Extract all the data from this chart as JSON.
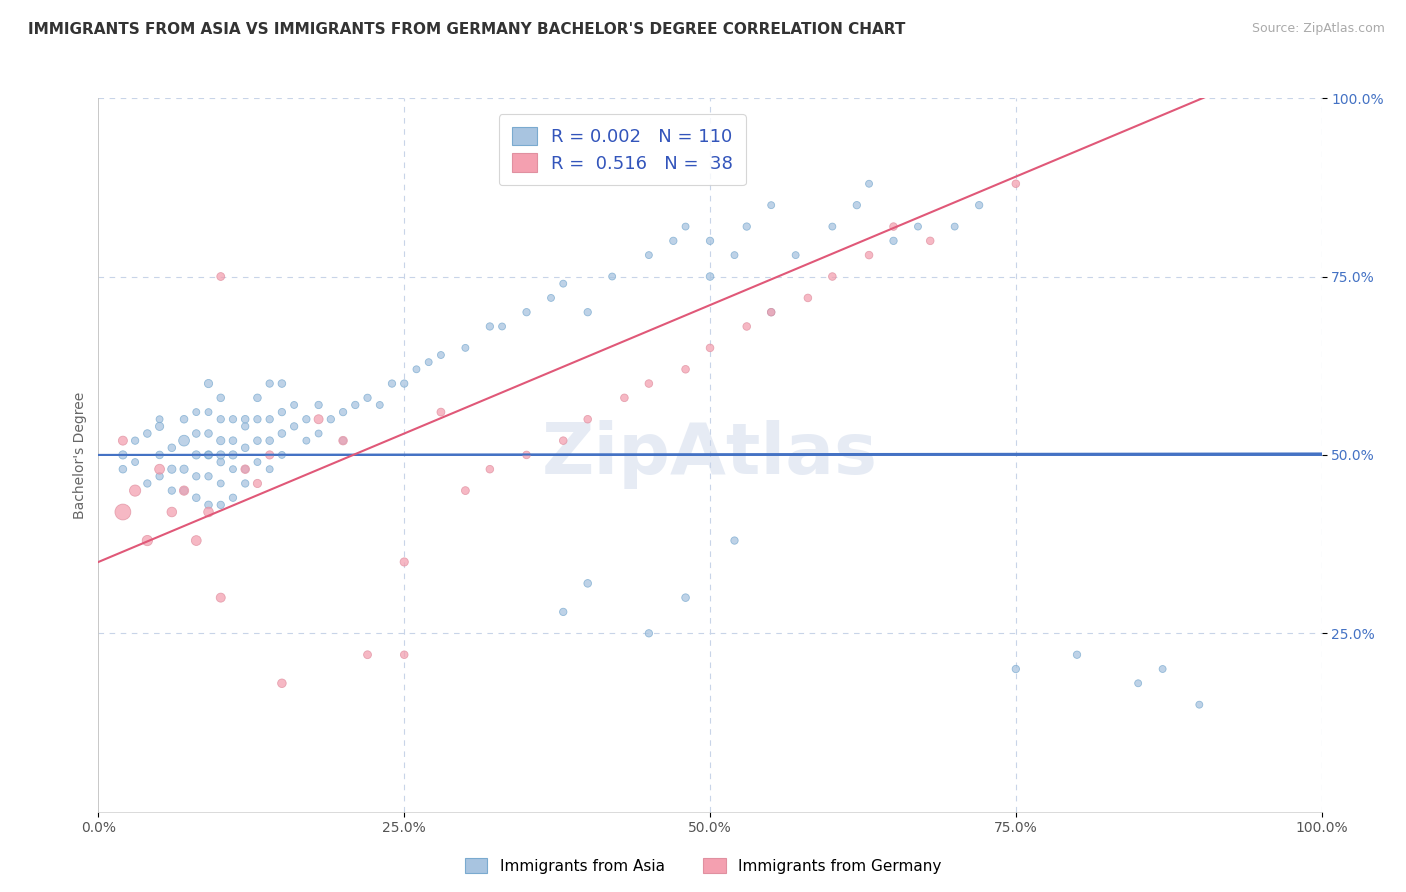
{
  "title": "IMMIGRANTS FROM ASIA VS IMMIGRANTS FROM GERMANY BACHELOR'S DEGREE CORRELATION CHART",
  "source": "Source: ZipAtlas.com",
  "ylabel": "Bachelor's Degree",
  "watermark": "ZipAtlas",
  "legend_entries": [
    {
      "label": "Immigrants from Asia",
      "R": "0.002",
      "N": "110",
      "color": "#a8c4e0"
    },
    {
      "label": "Immigrants from Germany",
      "R": "0.516",
      "N": "38",
      "color": "#f4a0b0"
    }
  ],
  "xlim": [
    0.0,
    1.0
  ],
  "ylim": [
    0.0,
    1.0
  ],
  "xticks": [
    0.0,
    0.25,
    0.5,
    0.75,
    1.0
  ],
  "xticklabels": [
    "0.0%",
    "25.0%",
    "50.0%",
    "75.0%",
    "100.0%"
  ],
  "yticks": [
    0.25,
    0.5,
    0.75,
    1.0
  ],
  "yticklabels": [
    "25.0%",
    "50.0%",
    "75.0%",
    "100.0%"
  ],
  "hline_y": 0.5,
  "hline_color": "#4472c4",
  "trend_asia_color": "#4472c4",
  "trend_germany_color": "#e05878",
  "scatter_asia_color": "#a8c4e0",
  "scatter_germany_color": "#f4a0b0",
  "scatter_asia_edgecolor": "#7aaacf",
  "scatter_germany_edgecolor": "#e090a0",
  "background_color": "#ffffff",
  "grid_color": "#c8d4e8",
  "asia_x": [
    0.02,
    0.02,
    0.03,
    0.03,
    0.04,
    0.04,
    0.05,
    0.05,
    0.05,
    0.05,
    0.06,
    0.06,
    0.06,
    0.07,
    0.07,
    0.07,
    0.07,
    0.08,
    0.08,
    0.08,
    0.08,
    0.08,
    0.09,
    0.09,
    0.09,
    0.09,
    0.09,
    0.09,
    0.09,
    0.1,
    0.1,
    0.1,
    0.1,
    0.1,
    0.1,
    0.1,
    0.11,
    0.11,
    0.11,
    0.11,
    0.11,
    0.12,
    0.12,
    0.12,
    0.12,
    0.12,
    0.13,
    0.13,
    0.13,
    0.13,
    0.14,
    0.14,
    0.14,
    0.14,
    0.15,
    0.15,
    0.15,
    0.15,
    0.16,
    0.16,
    0.17,
    0.17,
    0.18,
    0.18,
    0.19,
    0.2,
    0.2,
    0.21,
    0.22,
    0.23,
    0.24,
    0.25,
    0.26,
    0.27,
    0.28,
    0.3,
    0.32,
    0.33,
    0.35,
    0.37,
    0.38,
    0.4,
    0.42,
    0.45,
    0.47,
    0.48,
    0.5,
    0.5,
    0.52,
    0.53,
    0.55,
    0.55,
    0.57,
    0.6,
    0.62,
    0.63,
    0.65,
    0.67,
    0.7,
    0.72,
    0.75,
    0.8,
    0.85,
    0.87,
    0.9,
    0.52,
    0.48,
    0.45,
    0.4,
    0.38
  ],
  "asia_y": [
    0.5,
    0.48,
    0.52,
    0.49,
    0.53,
    0.46,
    0.54,
    0.5,
    0.47,
    0.55,
    0.48,
    0.51,
    0.45,
    0.52,
    0.48,
    0.55,
    0.45,
    0.5,
    0.53,
    0.47,
    0.56,
    0.44,
    0.5,
    0.53,
    0.47,
    0.56,
    0.43,
    0.6,
    0.5,
    0.52,
    0.49,
    0.55,
    0.46,
    0.58,
    0.43,
    0.5,
    0.52,
    0.55,
    0.48,
    0.5,
    0.44,
    0.51,
    0.54,
    0.48,
    0.55,
    0.46,
    0.52,
    0.55,
    0.49,
    0.58,
    0.52,
    0.55,
    0.48,
    0.6,
    0.53,
    0.56,
    0.5,
    0.6,
    0.54,
    0.57,
    0.55,
    0.52,
    0.57,
    0.53,
    0.55,
    0.56,
    0.52,
    0.57,
    0.58,
    0.57,
    0.6,
    0.6,
    0.62,
    0.63,
    0.64,
    0.65,
    0.68,
    0.68,
    0.7,
    0.72,
    0.74,
    0.7,
    0.75,
    0.78,
    0.8,
    0.82,
    0.8,
    0.75,
    0.78,
    0.82,
    0.85,
    0.7,
    0.78,
    0.82,
    0.85,
    0.88,
    0.8,
    0.82,
    0.82,
    0.85,
    0.2,
    0.22,
    0.18,
    0.2,
    0.15,
    0.38,
    0.3,
    0.25,
    0.32,
    0.28
  ],
  "asia_sizes": [
    35,
    30,
    28,
    25,
    30,
    28,
    35,
    30,
    28,
    25,
    35,
    30,
    28,
    60,
    35,
    30,
    28,
    35,
    30,
    28,
    25,
    30,
    35,
    30,
    28,
    25,
    30,
    35,
    28,
    35,
    30,
    28,
    25,
    30,
    28,
    35,
    30,
    28,
    25,
    35,
    28,
    30,
    28,
    25,
    30,
    28,
    30,
    28,
    25,
    30,
    30,
    28,
    25,
    28,
    30,
    28,
    25,
    30,
    28,
    25,
    28,
    25,
    28,
    25,
    28,
    28,
    25,
    28,
    28,
    25,
    28,
    28,
    25,
    25,
    25,
    25,
    28,
    25,
    28,
    25,
    25,
    28,
    25,
    25,
    28,
    25,
    28,
    30,
    25,
    28,
    25,
    28,
    25,
    25,
    28,
    25,
    28,
    25,
    25,
    28,
    28,
    28,
    25,
    25,
    25,
    28,
    30,
    28,
    30,
    28
  ],
  "germany_x": [
    0.02,
    0.03,
    0.04,
    0.05,
    0.06,
    0.07,
    0.08,
    0.09,
    0.02,
    0.1,
    0.12,
    0.13,
    0.14,
    0.15,
    0.18,
    0.2,
    0.1,
    0.22,
    0.25,
    0.28,
    0.3,
    0.32,
    0.35,
    0.38,
    0.4,
    0.25,
    0.43,
    0.45,
    0.48,
    0.5,
    0.53,
    0.55,
    0.58,
    0.6,
    0.63,
    0.65,
    0.68,
    0.75
  ],
  "germany_y": [
    0.42,
    0.45,
    0.38,
    0.48,
    0.42,
    0.45,
    0.38,
    0.42,
    0.52,
    0.3,
    0.48,
    0.46,
    0.5,
    0.18,
    0.55,
    0.52,
    0.75,
    0.22,
    0.35,
    0.56,
    0.45,
    0.48,
    0.5,
    0.52,
    0.55,
    0.22,
    0.58,
    0.6,
    0.62,
    0.65,
    0.68,
    0.7,
    0.72,
    0.75,
    0.78,
    0.82,
    0.8,
    0.88
  ],
  "germany_sizes": [
    130,
    65,
    55,
    50,
    48,
    45,
    50,
    48,
    42,
    42,
    38,
    35,
    35,
    38,
    42,
    38,
    32,
    32,
    35,
    32,
    32,
    30,
    30,
    30,
    30,
    30,
    30,
    30,
    30,
    30,
    30,
    30,
    30,
    30,
    30,
    30,
    30,
    30
  ],
  "title_fontsize": 11,
  "source_fontsize": 9,
  "label_fontsize": 10,
  "tick_fontsize": 10,
  "legend_fontsize": 13,
  "watermark_fontsize": 52,
  "watermark_color": "#c8d4e8",
  "watermark_alpha": 0.45,
  "trend_asia_intercept": 0.5,
  "trend_asia_slope": 0.002,
  "trend_germany_intercept": 0.35,
  "trend_germany_slope": 0.72
}
